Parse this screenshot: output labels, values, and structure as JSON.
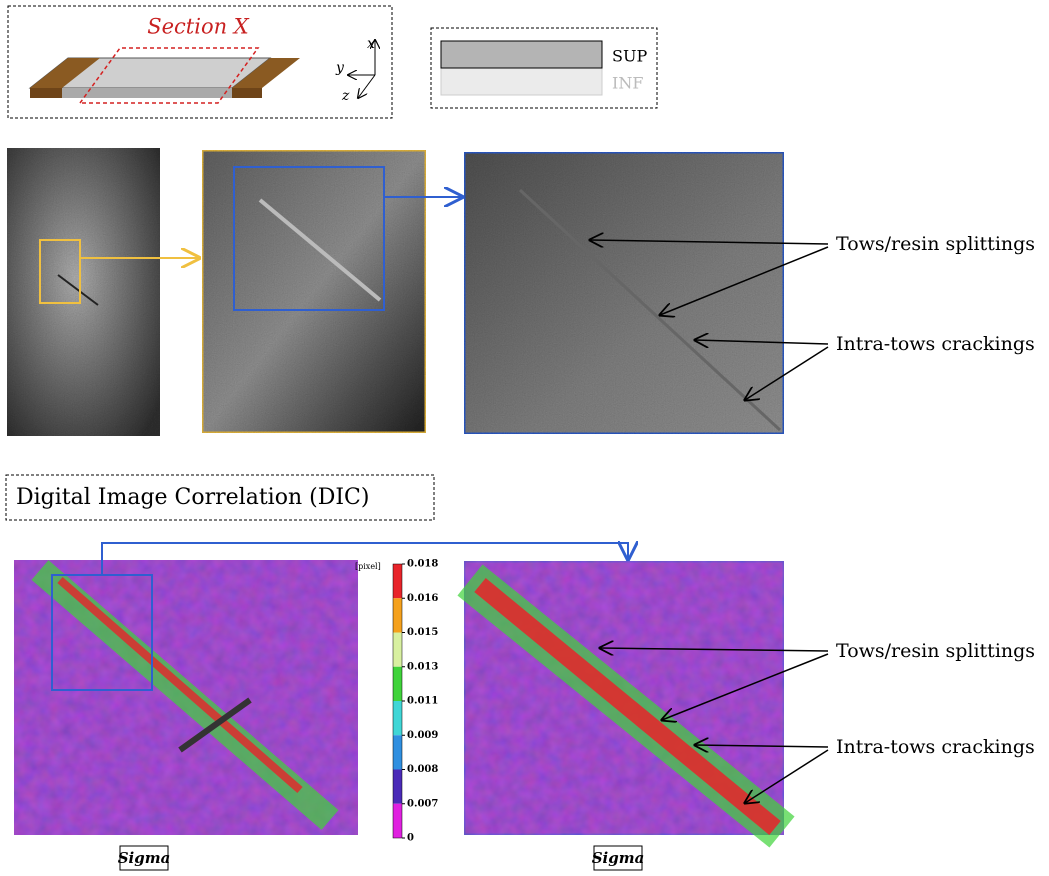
{
  "schematic": {
    "section_label": "Section X",
    "axes": {
      "x": "x",
      "y": "y",
      "z": "z"
    }
  },
  "legend": {
    "items": [
      "SUP",
      "INF"
    ]
  },
  "top_annotations": [
    "Tows/resin splittings",
    "Intra-tows crackings"
  ],
  "dic_title": "Digital Image Correlation (DIC)",
  "colorbar": {
    "unit": "[pixel]",
    "ticks": [
      0.018,
      0.016,
      0.015,
      0.013,
      0.011,
      0.009,
      0.008,
      0.007,
      0
    ],
    "colors": [
      "#e8242a",
      "#f5a11c",
      "#d8f0a0",
      "#3fd33a",
      "#3fd6d6",
      "#2f8fe0",
      "#4a2ab8",
      "#e020e0"
    ]
  },
  "bottom_annotations": [
    "Tows/resin splittings",
    "Intra-tows crackings"
  ],
  "captions": [
    "Sigma",
    "Sigma"
  ]
}
